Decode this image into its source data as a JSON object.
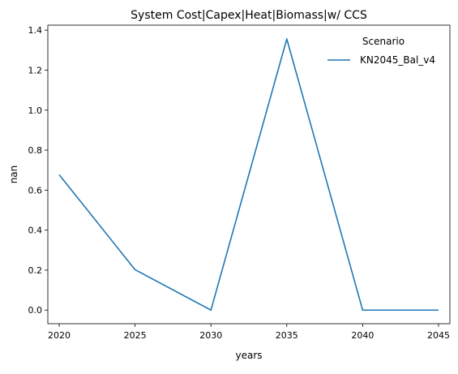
{
  "chart_data": {
    "type": "line",
    "title": "System Cost|Capex|Heat|Biomass|w/ CCS",
    "xlabel": "years",
    "ylabel": "nan",
    "x": [
      2020,
      2025,
      2030,
      2035,
      2040,
      2045
    ],
    "xticks": [
      "2020",
      "2025",
      "2030",
      "2035",
      "2040",
      "2045"
    ],
    "yticks": [
      "0.0",
      "0.2",
      "0.4",
      "0.6",
      "0.8",
      "1.0",
      "1.2",
      "1.4"
    ],
    "xlim": [
      2019.25,
      2045.75
    ],
    "ylim": [
      -0.068,
      1.425
    ],
    "grid": false,
    "legend": {
      "title": "Scenario",
      "placement": "top-right"
    },
    "series": [
      {
        "name": "KN2045_Bal_v4",
        "color": "#1f77b4",
        "values": [
          0.677,
          0.202,
          0.0,
          1.356,
          0.0,
          0.0
        ]
      }
    ]
  }
}
